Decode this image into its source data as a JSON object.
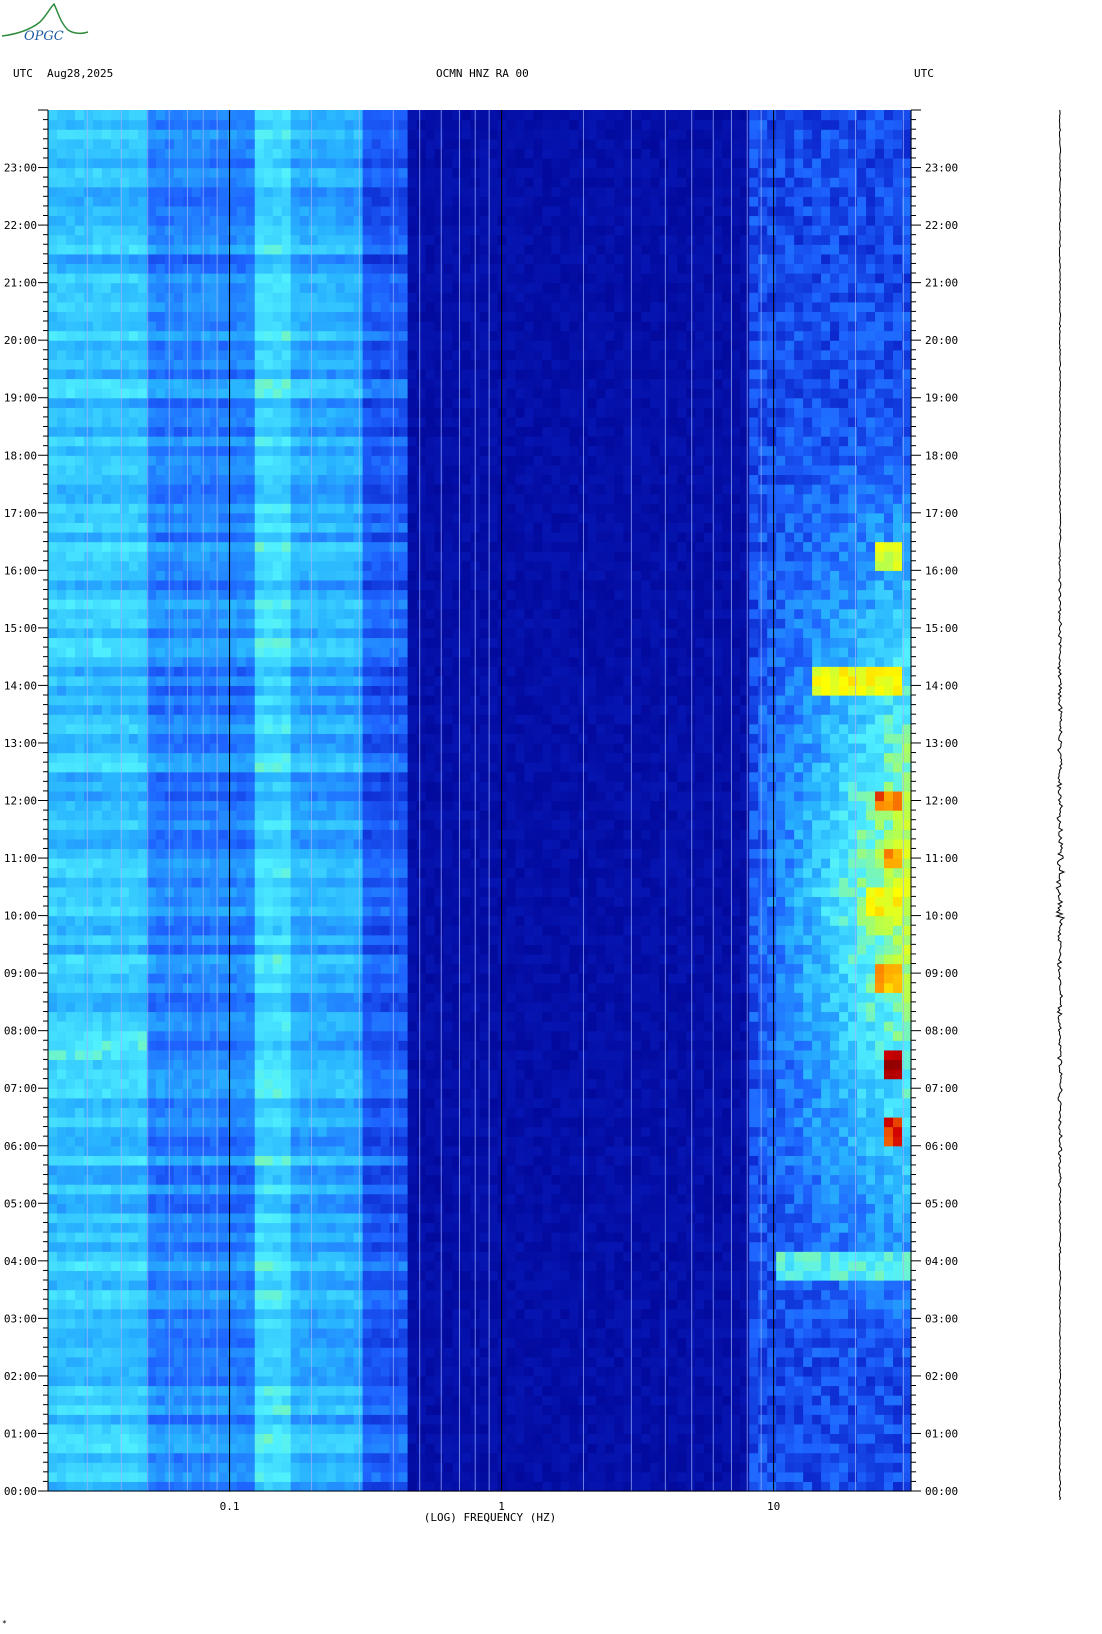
{
  "logo": {
    "text": "OPGC"
  },
  "header": {
    "left_label": "UTC",
    "date": "Aug28,2025",
    "station": "OCMN HNZ RA 00",
    "right_label": "UTC"
  },
  "footer_mark": "*",
  "chart_data": {
    "type": "heatmap",
    "title": "OCMN HNZ RA 00",
    "xlabel": "(LOG) FREQUENCY (HZ)",
    "ylabel": "UTC",
    "x_scale": "log",
    "xlim": [
      0.0215,
      32
    ],
    "x_ticks": [
      {
        "value": 0.1,
        "label": "0.1"
      },
      {
        "value": 1,
        "label": "1"
      },
      {
        "value": 10,
        "label": "10"
      }
    ],
    "ylim_hours": [
      0,
      24
    ],
    "y_ticks": [
      {
        "value": 0,
        "label": "00:00"
      },
      {
        "value": 1,
        "label": "01:00"
      },
      {
        "value": 2,
        "label": "02:00"
      },
      {
        "value": 3,
        "label": "03:00"
      },
      {
        "value": 4,
        "label": "04:00"
      },
      {
        "value": 5,
        "label": "05:00"
      },
      {
        "value": 6,
        "label": "06:00"
      },
      {
        "value": 7,
        "label": "07:00"
      },
      {
        "value": 8,
        "label": "08:00"
      },
      {
        "value": 9,
        "label": "09:00"
      },
      {
        "value": 10,
        "label": "10:00"
      },
      {
        "value": 11,
        "label": "11:00"
      },
      {
        "value": 12,
        "label": "12:00"
      },
      {
        "value": 13,
        "label": "13:00"
      },
      {
        "value": 14,
        "label": "14:00"
      },
      {
        "value": 15,
        "label": "15:00"
      },
      {
        "value": 16,
        "label": "16:00"
      },
      {
        "value": 17,
        "label": "17:00"
      },
      {
        "value": 18,
        "label": "18:00"
      },
      {
        "value": 19,
        "label": "19:00"
      },
      {
        "value": 20,
        "label": "20:00"
      },
      {
        "value": 21,
        "label": "21:00"
      },
      {
        "value": 22,
        "label": "22:00"
      },
      {
        "value": 23,
        "label": "23:00"
      }
    ],
    "freq_gridlines_hz": [
      0.03,
      0.04,
      0.05,
      0.06,
      0.07,
      0.08,
      0.09,
      0.2,
      0.3,
      0.4,
      0.5,
      0.6,
      0.7,
      0.8,
      0.9,
      2,
      3,
      4,
      5,
      6,
      7,
      8,
      9,
      20,
      30
    ],
    "colormap": [
      "#00008c",
      "#0a22c8",
      "#1e64ff",
      "#28b4ff",
      "#50f0ff",
      "#b4ff50",
      "#ffff00",
      "#ff8c00",
      "#d20000",
      "#8c0000"
    ],
    "energy_bands": [
      {
        "f_min": 0.0215,
        "f_max": 0.05,
        "level": 0.32
      },
      {
        "f_min": 0.05,
        "f_max": 0.12,
        "level": 0.22
      },
      {
        "f_min": 0.12,
        "f_max": 0.17,
        "level": 0.36
      },
      {
        "f_min": 0.17,
        "f_max": 0.3,
        "level": 0.28
      },
      {
        "f_min": 0.3,
        "f_max": 0.45,
        "level": 0.16
      },
      {
        "f_min": 0.45,
        "f_max": 8,
        "level": 0.03
      },
      {
        "f_min": 8,
        "f_max": 32,
        "level": 0.3
      }
    ],
    "hot_spots": [
      {
        "time": 7.45,
        "f_min": 25,
        "f_max": 30,
        "level": 1.0
      },
      {
        "time": 6.3,
        "f_min": 25,
        "f_max": 29,
        "level": 0.9
      },
      {
        "time": 12.0,
        "f_min": 24,
        "f_max": 30,
        "level": 0.85
      },
      {
        "time": 8.9,
        "f_min": 24,
        "f_max": 30,
        "level": 0.8
      },
      {
        "time": 11.0,
        "f_min": 25,
        "f_max": 30,
        "level": 0.8
      },
      {
        "time": 7.8,
        "f_min": 0.0215,
        "f_max": 0.05,
        "level": 0.48
      },
      {
        "time": 14.1,
        "f_min": 14,
        "f_max": 30,
        "level": 0.7
      },
      {
        "time": 10.2,
        "f_min": 22,
        "f_max": 30,
        "level": 0.7
      },
      {
        "time": 16.2,
        "f_min": 24,
        "f_max": 30,
        "level": 0.65
      },
      {
        "time": 3.9,
        "f_min": 10,
        "f_max": 32,
        "level": 0.5
      }
    ]
  }
}
